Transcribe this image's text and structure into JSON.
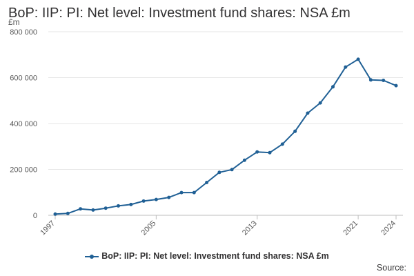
{
  "chart_data": {
    "type": "line",
    "title": "BoP: IIP: PI: Net level: Investment fund shares: NSA £m",
    "unit_label": "£m",
    "x": [
      1997,
      1998,
      1999,
      2000,
      2001,
      2002,
      2003,
      2004,
      2005,
      2006,
      2007,
      2008,
      2009,
      2010,
      2011,
      2012,
      2013,
      2014,
      2015,
      2016,
      2017,
      2018,
      2019,
      2020,
      2021,
      2022,
      2023,
      2024
    ],
    "x_tick_labels": [
      "1997",
      "2005",
      "2013",
      "2021",
      "2024"
    ],
    "y_tick_labels": [
      "0",
      "200 000",
      "400 000",
      "600 000",
      "800 000"
    ],
    "xlim": [
      1997,
      2024
    ],
    "ylim": [
      0,
      800000
    ],
    "grid": true,
    "legend_position": "bottom",
    "series": [
      {
        "name": "BoP: IIP: PI: Net level: Investment fund shares: NSA £m",
        "color": "#206095",
        "values": [
          5000,
          8000,
          28000,
          23000,
          31000,
          41000,
          47000,
          62000,
          69000,
          78000,
          99000,
          99000,
          143000,
          187000,
          199000,
          240000,
          276000,
          273000,
          310000,
          366000,
          445000,
          490000,
          560000,
          646000,
          680000,
          590000,
          588000,
          565000
        ]
      }
    ]
  },
  "source_label": "Source:"
}
